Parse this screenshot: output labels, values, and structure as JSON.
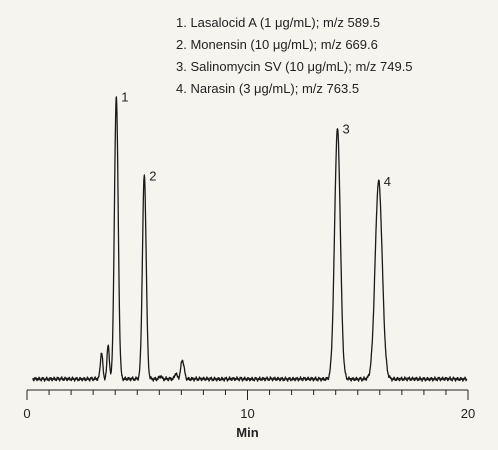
{
  "chart_data": {
    "type": "line",
    "title": "",
    "xlabel": "Min",
    "ylabel": "",
    "xlim": [
      0,
      20
    ],
    "ylim": [
      0,
      100
    ],
    "grid": false,
    "legend_position": "top-right",
    "x_ticks": [
      0,
      10,
      20
    ],
    "x_tick_labels": [
      "0",
      "10",
      "20"
    ],
    "minor_tick_step": 1,
    "legend": [
      "1.  Lasalocid A (1 μg/mL); m/z 589.5",
      "2.  Monensin (10 μg/mL); m/z 669.6",
      "3.  Salinomycin SV (10 μg/mL); m/z 749.5",
      "4.  Narasin (3 μg/mL); m/z 763.5"
    ],
    "trace_color": "#1a1a1a",
    "baseline": 0,
    "peaks": [
      {
        "label": "",
        "rt": 3.38,
        "height": 9,
        "width": 0.055
      },
      {
        "label": "",
        "rt": 3.68,
        "height": 12,
        "width": 0.05
      },
      {
        "label": "1",
        "rt": 4.05,
        "height": 97,
        "width": 0.085
      },
      {
        "label": "2",
        "rt": 5.32,
        "height": 70,
        "width": 0.085
      },
      {
        "label": "",
        "rt": 6.05,
        "height": 1,
        "width": 0.05
      },
      {
        "label": "",
        "rt": 6.75,
        "height": 2,
        "width": 0.05
      },
      {
        "label": "",
        "rt": 7.05,
        "height": 6.5,
        "width": 0.075
      },
      {
        "label": "3",
        "rt": 14.08,
        "height": 86,
        "width": 0.13
      },
      {
        "label": "4",
        "rt": 15.95,
        "height": 68,
        "width": 0.16
      }
    ],
    "series": [
      {
        "x": [
          0,
          3.0,
          3.38,
          3.68,
          4.05,
          4.5,
          5.32,
          5.8,
          6.05,
          6.75,
          7.05,
          7.5,
          13.5,
          14.08,
          14.7,
          15.95,
          16.8,
          20
        ],
        "y": [
          0,
          0,
          9,
          12,
          97,
          0,
          70,
          0,
          1,
          2,
          6.5,
          0,
          0,
          86,
          0,
          68,
          0,
          0
        ]
      }
    ]
  }
}
